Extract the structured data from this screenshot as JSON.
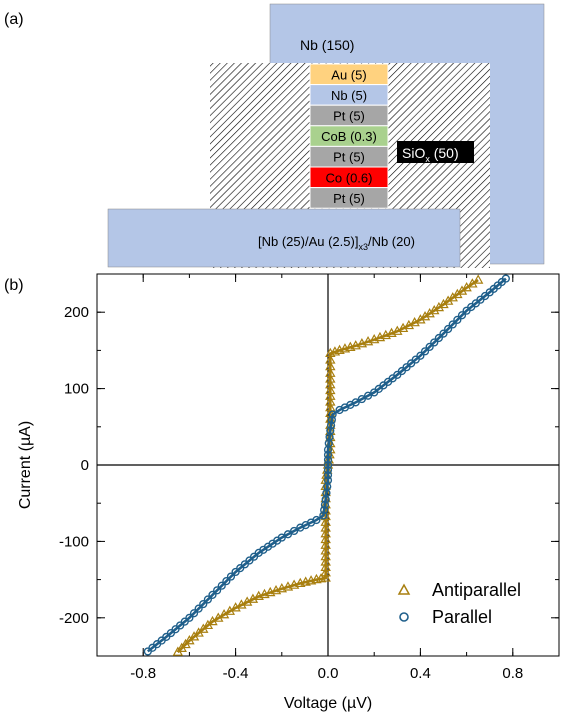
{
  "panel_a": {
    "label": "(a)",
    "top_electrode": "Nb (150)",
    "insulator_main": "SiO",
    "insulator_sub": "x",
    "insulator_tail": " (50)",
    "bottom_main": "[Nb (25)/Au (2.5)]",
    "bottom_sub": "x3",
    "bottom_tail": "/Nb (20)",
    "layers": [
      {
        "label": "Au (5)",
        "color": "#ffd27f",
        "text_color": "#000000"
      },
      {
        "label": "Nb (5)",
        "color": "#b4c6e7",
        "text_color": "#000000"
      },
      {
        "label": "Pt (5)",
        "color": "#a6a6a6",
        "text_color": "#000000"
      },
      {
        "label": "CoB (0.3)",
        "color": "#a9d18e",
        "text_color": "#000000"
      },
      {
        "label": "Pt (5)",
        "color": "#a6a6a6",
        "text_color": "#000000"
      },
      {
        "label": "Co (0.6)",
        "color": "#ff0000",
        "text_color": "#000000"
      },
      {
        "label": "Pt (5)",
        "color": "#a6a6a6",
        "text_color": "#000000"
      }
    ]
  },
  "panel_b": {
    "label": "(b)"
  },
  "chart_data": {
    "type": "scatter",
    "xlabel": "Voltage (µV)",
    "ylabel": "Current (µA)",
    "xlim": [
      -1.0,
      1.0
    ],
    "ylim": [
      -250,
      250
    ],
    "xticks": [
      -0.8,
      -0.4,
      0.0,
      0.4,
      0.8
    ],
    "xtick_labels": [
      "-0.8",
      "-0.4",
      "0.0",
      "0.4",
      "0.8"
    ],
    "yticks": [
      -200,
      -100,
      0,
      100,
      200
    ],
    "ytick_labels": [
      "-200",
      "-100",
      "0",
      "100",
      "200"
    ],
    "legend_position": "bottom-right",
    "series": [
      {
        "name": "Antiparallel",
        "marker": "triangle",
        "color": "#a87f0f",
        "points": [
          [
            -0.65,
            -245
          ],
          [
            -0.6,
            -230
          ],
          [
            -0.5,
            -205
          ],
          [
            -0.4,
            -187
          ],
          [
            -0.3,
            -172
          ],
          [
            -0.2,
            -162
          ],
          [
            -0.12,
            -155
          ],
          [
            -0.05,
            -150
          ],
          [
            -0.01,
            -148
          ],
          [
            -0.01,
            -120
          ],
          [
            -0.01,
            -60
          ],
          [
            -0.01,
            -20
          ],
          [
            0.0,
            0
          ],
          [
            0.01,
            20
          ],
          [
            0.01,
            60
          ],
          [
            0.01,
            120
          ],
          [
            0.01,
            146
          ],
          [
            0.05,
            150
          ],
          [
            0.12,
            156
          ],
          [
            0.2,
            164
          ],
          [
            0.3,
            175
          ],
          [
            0.4,
            190
          ],
          [
            0.5,
            210
          ],
          [
            0.6,
            232
          ],
          [
            0.65,
            242
          ]
        ]
      },
      {
        "name": "Parallel",
        "marker": "circle",
        "color": "#1f5f8b",
        "points": [
          [
            -0.78,
            -244
          ],
          [
            -0.7,
            -225
          ],
          [
            -0.6,
            -200
          ],
          [
            -0.5,
            -170
          ],
          [
            -0.4,
            -140
          ],
          [
            -0.3,
            -115
          ],
          [
            -0.2,
            -95
          ],
          [
            -0.12,
            -82
          ],
          [
            -0.05,
            -72
          ],
          [
            -0.02,
            -66
          ],
          [
            -0.01,
            -45
          ],
          [
            0.0,
            -20
          ],
          [
            0.0,
            0
          ],
          [
            0.0,
            20
          ],
          [
            0.01,
            45
          ],
          [
            0.02,
            66
          ],
          [
            0.05,
            72
          ],
          [
            0.12,
            82
          ],
          [
            0.2,
            95
          ],
          [
            0.3,
            118
          ],
          [
            0.4,
            143
          ],
          [
            0.5,
            172
          ],
          [
            0.6,
            202
          ],
          [
            0.7,
            226
          ],
          [
            0.77,
            244
          ]
        ]
      }
    ]
  }
}
